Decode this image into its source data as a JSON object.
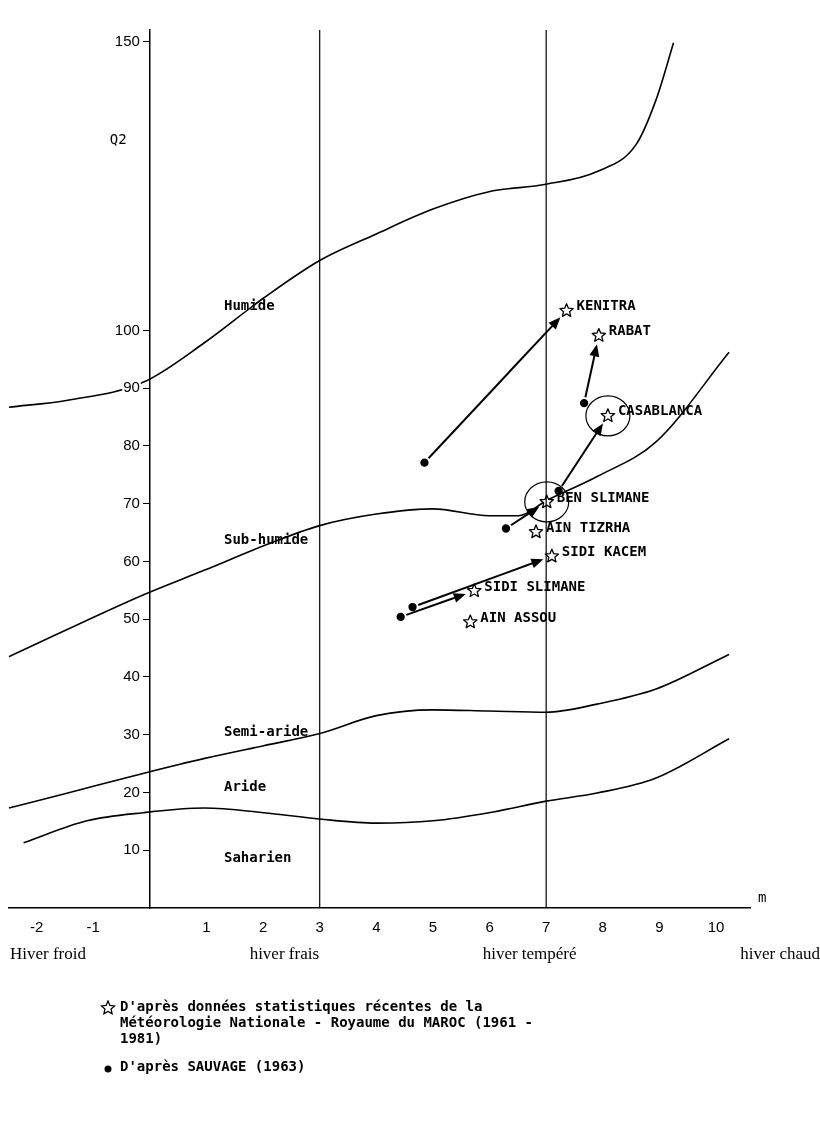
{
  "chart_data": {
    "type": "scatter",
    "xlabel": "m",
    "ylabel": "Q2",
    "xlim": [
      -2.5,
      10.6
    ],
    "ylim": [
      0,
      152
    ],
    "xticks": [
      -2,
      -1,
      1,
      2,
      3,
      4,
      5,
      6,
      7,
      8,
      9,
      10
    ],
    "yticks": [
      10,
      20,
      30,
      40,
      50,
      60,
      70,
      80,
      90,
      100,
      150
    ],
    "grid": false,
    "legend": "bottom",
    "series": [
      {
        "name": "D'après données statistiques récentes de la Météorologie Nationale - Royaume du MAROC (1961 - 1981)",
        "type": "scatter",
        "marker": "star",
        "color": "#000000",
        "x": [
          7.36,
          7.93,
          8.09,
          7.01,
          6.82,
          7.1,
          5.73,
          5.66
        ],
        "values": [
          103.4,
          99.1,
          85.2,
          70.3,
          65.1,
          60.9,
          54.9,
          49.5
        ]
      },
      {
        "name": "D'après SAUVAGE (1963)",
        "type": "scatter",
        "marker": "circle",
        "color": "#000000",
        "x": [
          4.85,
          6.29,
          7.22,
          7.67,
          4.64,
          4.43
        ],
        "values": [
          77.1,
          65.7,
          72.2,
          87.4,
          52.1,
          50.4
        ]
      },
      {
        "type": "line",
        "marker": "none",
        "color": "#000000",
        "x": [
          -2.49,
          -1.45,
          -0.12,
          0.97,
          2.01,
          3.0,
          4.0,
          5.0,
          5.99,
          7.0,
          7.9,
          8.59,
          8.94,
          9.25
        ],
        "values": [
          86.7,
          87.9,
          91.0,
          97.9,
          105.6,
          112.1,
          116.7,
          121.0,
          124.0,
          125.3,
          127.5,
          132.2,
          139.9,
          149.8
        ]
      },
      {
        "type": "line",
        "marker": "none",
        "color": "#000000",
        "x": [
          -2.49,
          -0.12,
          0.97,
          2.01,
          3.0,
          4.0,
          5.0,
          5.99,
          6.51,
          7.0,
          7.9,
          8.94,
          10.23
        ],
        "values": [
          43.5,
          54.2,
          58.5,
          62.7,
          66.2,
          68.2,
          69.1,
          67.9,
          67.9,
          70.5,
          74.7,
          80.7,
          96.2
        ]
      },
      {
        "type": "line",
        "marker": "none",
        "color": "#000000",
        "x": [
          -2.49,
          -1.45,
          -0.12,
          0.97,
          2.01,
          3.0,
          4.0,
          5.0,
          5.99,
          7.0,
          7.9,
          8.94,
          10.23
        ],
        "values": [
          17.3,
          19.9,
          23.3,
          25.9,
          28.1,
          30.2,
          33.3,
          34.3,
          34.1,
          33.9,
          35.3,
          37.9,
          43.9
        ]
      },
      {
        "type": "line",
        "marker": "none",
        "color": "#000000",
        "x": [
          -2.23,
          -1.11,
          -0.12,
          0.97,
          2.01,
          3.0,
          4.0,
          5.0,
          5.99,
          7.0,
          7.9,
          8.94,
          10.23
        ],
        "values": [
          11.3,
          15.1,
          16.5,
          17.3,
          16.5,
          15.4,
          14.7,
          15.1,
          16.5,
          18.5,
          19.9,
          22.5,
          29.3
        ]
      }
    ],
    "ref_lines": [
      {
        "axis": "x",
        "value": 3,
        "color": "#000000"
      },
      {
        "axis": "x",
        "value": 7,
        "color": "#000000"
      }
    ],
    "annotations": [
      {
        "text": "KENITRA",
        "x": 7.36,
        "y": 103.4
      },
      {
        "text": "RABAT",
        "x": 7.93,
        "y": 99.1
      },
      {
        "text": "CASABLANCA",
        "x": 8.09,
        "y": 85.2
      },
      {
        "text": "BEN SLIMANE",
        "x": 7.01,
        "y": 70.3
      },
      {
        "text": "AIN TIZRHA",
        "x": 6.82,
        "y": 65.1
      },
      {
        "text": "SIDI KACEM",
        "x": 7.1,
        "y": 60.9
      },
      {
        "text": "SIDI SLIMANE",
        "x": 5.73,
        "y": 54.9
      },
      {
        "text": "AIN ASSOU",
        "x": 5.66,
        "y": 49.5
      },
      "Humide",
      "Sub-humide",
      "Semi-aride",
      "Aride",
      "Saharien",
      "Hiver froid",
      "hiver frais",
      "hiver tempéré",
      "hiver chaud"
    ]
  }
}
